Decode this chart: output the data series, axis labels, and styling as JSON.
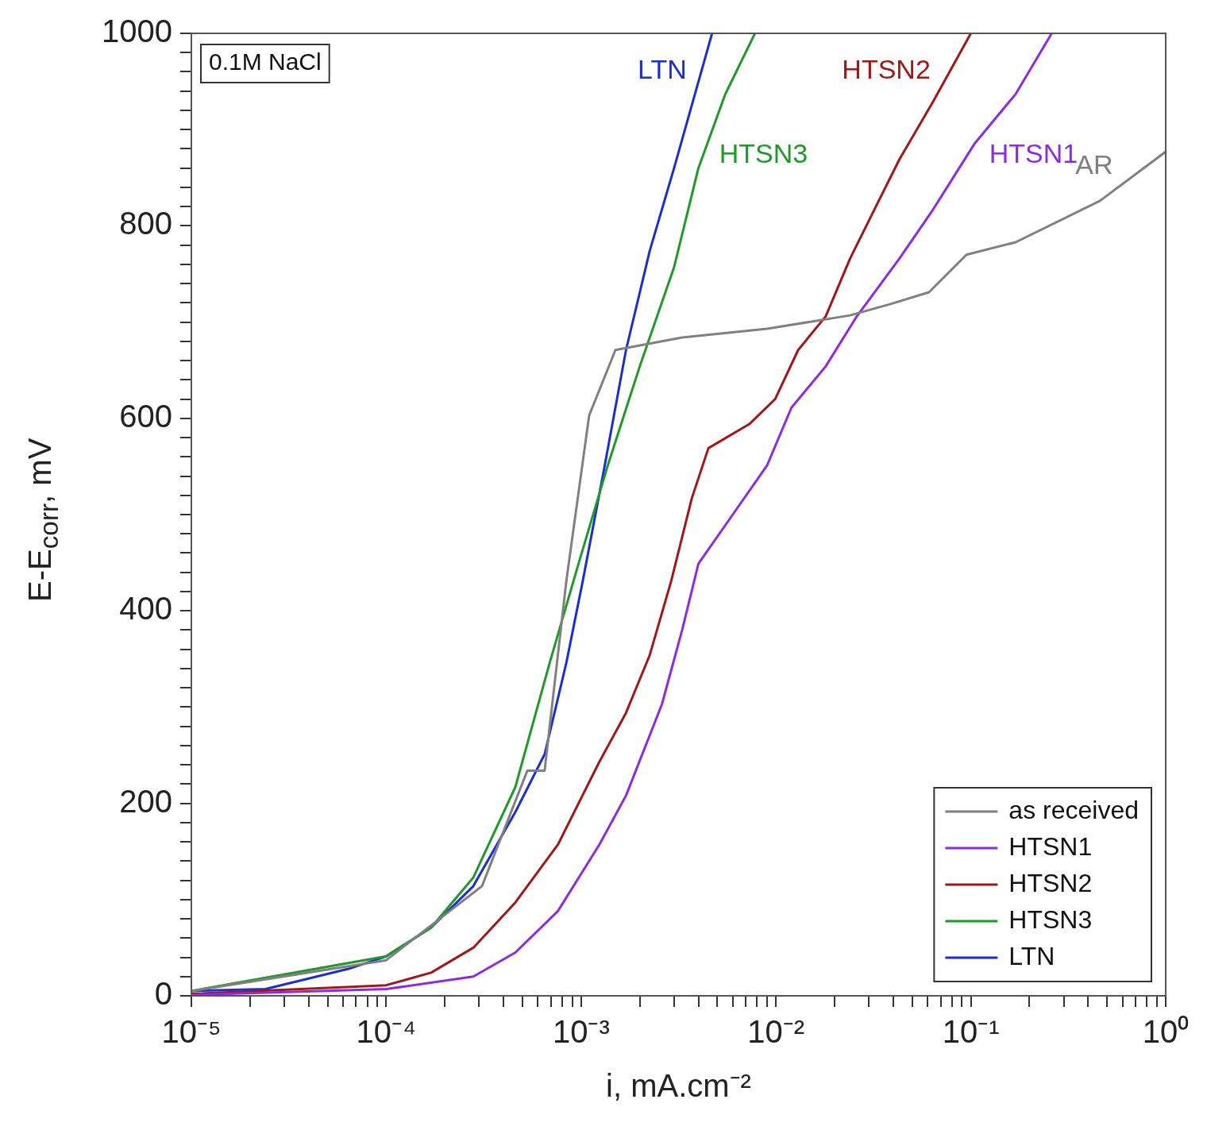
{
  "chart_data": {
    "type": "line",
    "xlabel": "i, mA.cm⁻²",
    "ylabel": "E-E$_{corr}$, mV",
    "log": "x",
    "legend": "bottom right",
    "grid": false,
    "marker": "none",
    "line_style": "solid",
    "xlim": [
      1e-05,
      1
    ],
    "ylim": [
      0,
      1000
    ],
    "xticks": [
      {
        "value": 1e-05,
        "label": "10⁻⁵"
      },
      {
        "value": 2e-05,
        "label": null
      },
      {
        "value": 3e-05,
        "label": null
      },
      {
        "value": 4e-05,
        "label": null
      },
      {
        "value": 5e-05,
        "label": null
      },
      {
        "value": 6e-05,
        "label": null
      },
      {
        "value": 7e-05,
        "label": null
      },
      {
        "value": 8e-05,
        "label": null
      },
      {
        "value": 9e-05,
        "label": null
      },
      {
        "value": 0.0001,
        "label": "10⁻⁴"
      },
      {
        "value": 0.0002,
        "label": null
      },
      {
        "value": 0.0003,
        "label": null
      },
      {
        "value": 0.0004,
        "label": null
      },
      {
        "value": 0.0005,
        "label": null
      },
      {
        "value": 0.0006,
        "label": null
      },
      {
        "value": 0.0007,
        "label": null
      },
      {
        "value": 0.0008,
        "label": null
      },
      {
        "value": 0.0009,
        "label": null
      },
      {
        "value": 0.001,
        "label": "10⁻³"
      },
      {
        "value": 0.002,
        "label": null
      },
      {
        "value": 0.003,
        "label": null
      },
      {
        "value": 0.004,
        "label": null
      },
      {
        "value": 0.005,
        "label": null
      },
      {
        "value": 0.006,
        "label": null
      },
      {
        "value": 0.007,
        "label": null
      },
      {
        "value": 0.008,
        "label": null
      },
      {
        "value": 0.009,
        "label": null
      },
      {
        "value": 0.01,
        "label": "10⁻²"
      },
      {
        "value": 0.02,
        "label": null
      },
      {
        "value": 0.03,
        "label": null
      },
      {
        "value": 0.04,
        "label": null
      },
      {
        "value": 0.05,
        "label": null
      },
      {
        "value": 0.06,
        "label": null
      },
      {
        "value": 0.07,
        "label": null
      },
      {
        "value": 0.08,
        "label": null
      },
      {
        "value": 0.09,
        "label": null
      },
      {
        "value": 0.1,
        "label": "10⁻¹"
      },
      {
        "value": 0.2,
        "label": null
      },
      {
        "value": 0.3,
        "label": null
      },
      {
        "value": 0.4,
        "label": null
      },
      {
        "value": 0.5,
        "label": null
      },
      {
        "value": 0.6,
        "label": null
      },
      {
        "value": 0.7,
        "label": null
      },
      {
        "value": 0.8,
        "label": null
      },
      {
        "value": 0.9,
        "label": null
      },
      {
        "value": 1,
        "label": "10⁰"
      }
    ],
    "yticks": [
      0,
      {
        "value": 20,
        "label": null
      },
      {
        "value": 40,
        "label": null
      },
      {
        "value": 60,
        "label": null
      },
      {
        "value": 80,
        "label": null
      },
      {
        "value": 100,
        "label": null
      },
      {
        "value": 120,
        "label": null
      },
      {
        "value": 140,
        "label": null
      },
      {
        "value": 160,
        "label": null
      },
      {
        "value": 180,
        "label": null
      },
      200,
      {
        "value": 220,
        "label": null
      },
      {
        "value": 240,
        "label": null
      },
      {
        "value": 260,
        "label": null
      },
      {
        "value": 280,
        "label": null
      },
      {
        "value": 300,
        "label": null
      },
      {
        "value": 320,
        "label": null
      },
      {
        "value": 340,
        "label": null
      },
      {
        "value": 360,
        "label": null
      },
      {
        "value": 380,
        "label": null
      },
      400,
      {
        "value": 420,
        "label": null
      },
      {
        "value": 440,
        "label": null
      },
      {
        "value": 460,
        "label": null
      },
      {
        "value": 480,
        "label": null
      },
      {
        "value": 500,
        "label": null
      },
      {
        "value": 520,
        "label": null
      },
      {
        "value": 540,
        "label": null
      },
      {
        "value": 560,
        "label": null
      },
      {
        "value": 580,
        "label": null
      },
      600,
      {
        "value": 620,
        "label": null
      },
      {
        "value": 640,
        "label": null
      },
      {
        "value": 660,
        "label": null
      },
      {
        "value": 680,
        "label": null
      },
      {
        "value": 700,
        "label": null
      },
      {
        "value": 720,
        "label": null
      },
      {
        "value": 740,
        "label": null
      },
      {
        "value": 760,
        "label": null
      },
      {
        "value": 780,
        "label": null
      },
      800,
      {
        "value": 820,
        "label": null
      },
      {
        "value": 840,
        "label": null
      },
      {
        "value": 860,
        "label": null
      },
      {
        "value": 880,
        "label": null
      },
      {
        "value": 900,
        "label": null
      },
      {
        "value": 920,
        "label": null
      },
      {
        "value": 940,
        "label": null
      },
      {
        "value": 960,
        "label": null
      },
      {
        "value": 980,
        "label": null
      },
      1000
    ],
    "series": [
      {
        "name": "as received",
        "color": "#808080",
        "x": [
          1e-05,
          0.0001,
          0.00031,
          0.00053,
          0.00065,
          0.00084,
          0.0011,
          0.0015,
          0.0033,
          0.009,
          0.024,
          0.039,
          0.061,
          0.095,
          0.17,
          0.46,
          1
        ],
        "values": [
          5,
          37,
          114,
          234,
          234,
          431,
          603,
          671,
          684,
          693,
          707,
          719,
          731,
          770,
          783,
          826,
          877
        ]
      },
      {
        "name": "HTSN1",
        "color": "#8b2be2",
        "x": [
          1e-05,
          0.0001,
          0.00028,
          0.00046,
          0.00076,
          0.00124,
          0.0017,
          0.0026,
          0.0033,
          0.004,
          0.006,
          0.009,
          0.012,
          0.018,
          0.026,
          0.043,
          0.064,
          0.105,
          0.17,
          0.26
        ],
        "values": [
          1,
          7,
          20,
          45,
          88,
          157,
          208,
          303,
          380,
          449,
          500,
          551,
          611,
          654,
          706,
          766,
          817,
          886,
          937,
          1000
        ]
      },
      {
        "name": "HTSN2",
        "color": "#a01818",
        "x": [
          1e-05,
          0.0001,
          0.00017,
          0.00028,
          0.00046,
          0.00076,
          0.00124,
          0.0017,
          0.00225,
          0.0029,
          0.0037,
          0.0045,
          0.0073,
          0.0099,
          0.013,
          0.018,
          0.024,
          0.032,
          0.043,
          0.064,
          0.1
        ],
        "values": [
          2,
          11,
          24,
          50,
          97,
          157,
          243,
          294,
          354,
          431,
          517,
          569,
          594,
          620,
          671,
          706,
          766,
          817,
          869,
          929,
          1000
        ]
      },
      {
        "name": "HTSN3",
        "color": "#1f9a2a",
        "x": [
          1e-05,
          0.0001,
          0.00017,
          0.00028,
          0.00046,
          0.00069,
          0.00097,
          0.00137,
          0.002,
          0.003,
          0.004,
          0.0055,
          0.0078
        ],
        "values": [
          5,
          41,
          71,
          123,
          217,
          346,
          449,
          551,
          654,
          757,
          860,
          937,
          1000
        ]
      },
      {
        "name": "LTN",
        "color": "#1a2fd0",
        "x": [
          1e-05,
          2.4e-05,
          6.4e-05,
          0.0001,
          0.00017,
          0.00028,
          0.00046,
          0.00065,
          0.00084,
          0.00102,
          0.0013,
          0.0017,
          0.00225,
          0.003,
          0.0047
        ],
        "values": [
          5,
          7,
          28,
          41,
          71,
          114,
          191,
          251,
          346,
          431,
          543,
          671,
          774,
          860,
          1000
        ]
      }
    ],
    "annotations": [
      {
        "text": "AR",
        "x": 0.6,
        "y": 843
      },
      {
        "text": "HTSN1",
        "x": 0.111,
        "y": 892
      },
      {
        "text": "HTSN2",
        "x": 0.0695,
        "y": 942
      },
      {
        "text": "HTSN3",
        "x": 0.00457,
        "y": 892
      },
      {
        "text": "LTN",
        "x": 0.0039,
        "y": 942
      },
      "0.1M NaCl"
    ]
  }
}
